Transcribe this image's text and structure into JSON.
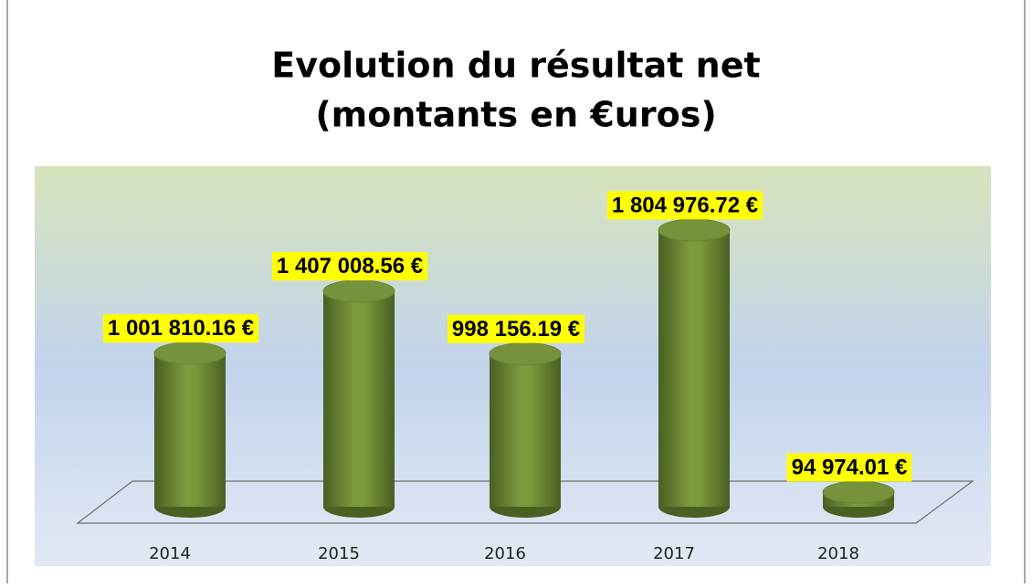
{
  "chart_data": {
    "type": "bar",
    "title": [
      "Evolution du résultat net",
      "(montants en €uros)"
    ],
    "categories": [
      "2014",
      "2015",
      "2016",
      "2017",
      "2018"
    ],
    "values": [
      1001810.16,
      1407008.56,
      998156.19,
      1804976.72,
      94974.01
    ],
    "value_labels": [
      "1 001 810.16 €",
      "1 407 008.56 €",
      "998 156.19 €",
      "1 804 976.72 €",
      "94 974.01 €"
    ],
    "color": "#76923c"
  }
}
